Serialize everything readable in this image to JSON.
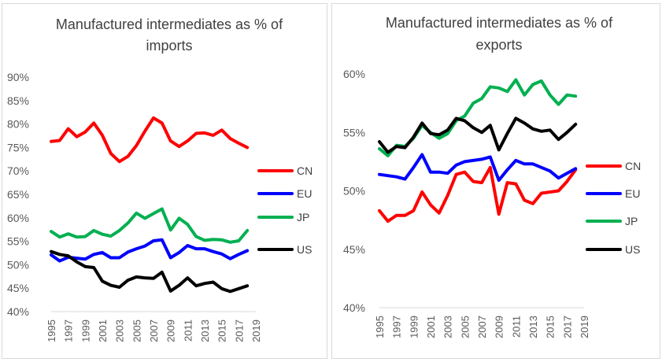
{
  "chart_data": [
    {
      "type": "line",
      "title_lines": [
        "Manufactured intermediates as % of",
        "imports"
      ],
      "xlabel": "",
      "ylabel": "",
      "x": [
        1995,
        1996,
        1997,
        1998,
        1999,
        2000,
        2001,
        2002,
        2003,
        2004,
        2005,
        2006,
        2007,
        2008,
        2009,
        2010,
        2011,
        2012,
        2013,
        2014,
        2015,
        2016,
        2017,
        2018
      ],
      "x_tick_labels": [
        "1995",
        "1997",
        "1999",
        "2001",
        "2003",
        "2005",
        "2007",
        "2009",
        "2011",
        "2013",
        "2015",
        "2017",
        "2019"
      ],
      "x_tick_years": [
        1995,
        1997,
        1999,
        2001,
        2003,
        2005,
        2007,
        2009,
        2011,
        2013,
        2015,
        2017,
        2019
      ],
      "xlim": [
        1995,
        2019
      ],
      "ylim": [
        40,
        90
      ],
      "y_ticks": [
        40,
        45,
        50,
        55,
        60,
        65,
        70,
        75,
        80,
        85,
        90
      ],
      "y_tick_labels": [
        "40%",
        "45%",
        "50%",
        "55%",
        "60%",
        "65%",
        "70%",
        "75%",
        "80%",
        "85%",
        "90%"
      ],
      "grid": false,
      "legend_position": "right",
      "series": [
        {
          "name": "CN",
          "color": "#ff0000",
          "values": [
            76.3,
            76.5,
            79.0,
            77.3,
            78.3,
            80.2,
            77.6,
            73.7,
            72.0,
            73.1,
            75.4,
            78.5,
            81.3,
            80.2,
            76.4,
            75.2,
            76.4,
            78.0,
            78.1,
            77.6,
            78.7,
            76.9,
            75.9,
            75.0
          ]
        },
        {
          "name": "EU",
          "color": "#0000ff",
          "values": [
            52.1,
            50.8,
            51.6,
            51.4,
            51.2,
            52.2,
            52.6,
            51.5,
            51.5,
            52.7,
            53.4,
            54.0,
            55.1,
            55.3,
            51.5,
            52.6,
            54.1,
            53.4,
            53.4,
            52.8,
            52.3,
            51.3,
            52.2,
            53.0
          ]
        },
        {
          "name": "JP",
          "color": "#00b050",
          "values": [
            57.1,
            55.9,
            56.6,
            55.9,
            56.0,
            57.3,
            56.5,
            56.1,
            57.3,
            58.9,
            61.0,
            59.9,
            60.9,
            61.9,
            57.4,
            59.9,
            58.6,
            56.0,
            55.2,
            55.4,
            55.3,
            54.8,
            55.1,
            57.3
          ]
        },
        {
          "name": "US",
          "color": "#000000",
          "values": [
            52.8,
            52.2,
            51.9,
            50.6,
            49.6,
            49.4,
            46.5,
            45.6,
            45.2,
            46.7,
            47.4,
            47.2,
            47.1,
            48.4,
            44.4,
            45.6,
            47.2,
            45.5,
            46.0,
            46.3,
            44.9,
            44.3,
            44.9,
            45.5
          ]
        }
      ]
    },
    {
      "type": "line",
      "title_lines": [
        "Manufactured intermediates as % of",
        "exports"
      ],
      "xlabel": "",
      "ylabel": "",
      "x": [
        1995,
        1996,
        1997,
        1998,
        1999,
        2000,
        2001,
        2002,
        2003,
        2004,
        2005,
        2006,
        2007,
        2008,
        2009,
        2010,
        2011,
        2012,
        2013,
        2014,
        2015,
        2016,
        2017,
        2018
      ],
      "x_tick_labels": [
        "1995",
        "1997",
        "1999",
        "2001",
        "2003",
        "2005",
        "2007",
        "2009",
        "2011",
        "2013",
        "2015",
        "2017",
        "2019"
      ],
      "x_tick_years": [
        1995,
        1997,
        1999,
        2001,
        2003,
        2005,
        2007,
        2009,
        2011,
        2013,
        2015,
        2017,
        2019
      ],
      "xlim": [
        1995,
        2019
      ],
      "ylim": [
        40,
        60
      ],
      "y_ticks": [
        40,
        45,
        50,
        55,
        60
      ],
      "y_tick_labels": [
        "40%",
        "45%",
        "50%",
        "55%",
        "60%"
      ],
      "grid": false,
      "legend_position": "right",
      "series": [
        {
          "name": "CN",
          "color": "#ff0000",
          "values": [
            48.3,
            47.4,
            47.9,
            47.9,
            48.3,
            49.9,
            48.8,
            48.1,
            49.6,
            51.4,
            51.6,
            50.8,
            50.7,
            52.0,
            48.0,
            50.7,
            50.6,
            49.2,
            48.9,
            49.8,
            49.9,
            50.0,
            50.8,
            51.8
          ]
        },
        {
          "name": "EU",
          "color": "#0000ff",
          "values": [
            51.4,
            51.3,
            51.2,
            51.0,
            52.0,
            53.1,
            51.6,
            51.6,
            51.5,
            52.2,
            52.5,
            52.6,
            52.7,
            52.9,
            50.9,
            51.8,
            52.6,
            52.3,
            52.3,
            52.0,
            51.7,
            51.1,
            51.5,
            51.9
          ]
        },
        {
          "name": "JP",
          "color": "#00b050",
          "values": [
            53.6,
            53.0,
            53.9,
            53.8,
            54.5,
            55.6,
            55.0,
            54.5,
            54.9,
            56.0,
            56.4,
            57.5,
            57.9,
            58.9,
            58.8,
            58.5,
            59.5,
            58.2,
            59.1,
            59.4,
            58.2,
            57.4,
            58.2,
            58.1
          ]
        },
        {
          "name": "US",
          "color": "#000000",
          "values": [
            54.2,
            53.3,
            53.8,
            53.7,
            54.6,
            55.8,
            54.9,
            54.8,
            55.2,
            56.2,
            56.0,
            55.4,
            55.0,
            55.6,
            53.5,
            54.9,
            56.2,
            55.8,
            55.3,
            55.1,
            55.2,
            54.4,
            55.0,
            55.7
          ]
        }
      ]
    }
  ]
}
